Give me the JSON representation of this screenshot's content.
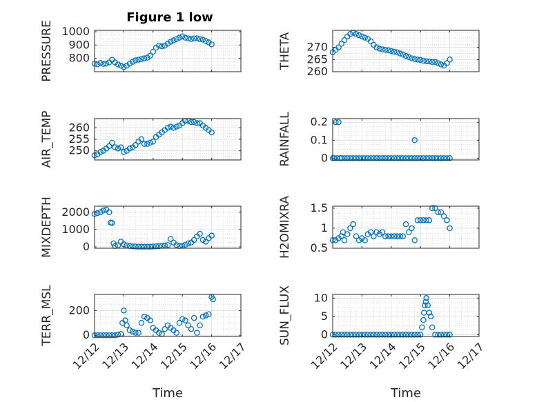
{
  "figure": {
    "title": "Figure 1 low"
  },
  "colors": {
    "marker": "#0072BD",
    "axis": "#262626",
    "grid": "#c8c8c8"
  },
  "chart_data": [
    {
      "type": "scatter",
      "id": "pressure",
      "ylabel": "PRESSURE",
      "xlabel": "",
      "title": "Figure 1 low",
      "xlim": [
        12,
        17
      ],
      "xticks": [
        12,
        13,
        14,
        15,
        16,
        17
      ],
      "xticklabels": [
        "12/12",
        "12/13",
        "12/14",
        "12/15",
        "12/16",
        "12/17"
      ],
      "show_xticklabels": false,
      "ylim": [
        700,
        1010
      ],
      "yticks": [
        800,
        900,
        1000
      ],
      "yticklabels": [
        "800",
        "900",
        "1000"
      ],
      "x": [
        12.0,
        12.1,
        12.2,
        12.3,
        12.4,
        12.5,
        12.6,
        12.7,
        12.8,
        12.9,
        13.0,
        13.1,
        13.2,
        13.3,
        13.4,
        13.5,
        13.6,
        13.7,
        13.8,
        13.9,
        14.0,
        14.1,
        14.2,
        14.3,
        14.4,
        14.5,
        14.6,
        14.7,
        14.8,
        14.9,
        15.0,
        15.1,
        15.2,
        15.3,
        15.4,
        15.5,
        15.6,
        15.7,
        15.8,
        15.9,
        16.0
      ],
      "y": [
        760,
        755,
        765,
        758,
        760,
        770,
        790,
        770,
        755,
        745,
        735,
        745,
        760,
        775,
        785,
        790,
        795,
        800,
        805,
        820,
        850,
        880,
        895,
        890,
        895,
        910,
        925,
        935,
        945,
        955,
        965,
        955,
        950,
        945,
        950,
        950,
        945,
        940,
        930,
        920,
        905
      ]
    },
    {
      "type": "scatter",
      "id": "theta",
      "ylabel": "THETA",
      "xlabel": "",
      "xlim": [
        12,
        17
      ],
      "xticks": [
        12,
        13,
        14,
        15,
        16,
        17
      ],
      "xticklabels": [
        "12/12",
        "12/13",
        "12/14",
        "12/15",
        "12/16",
        "12/17"
      ],
      "show_xticklabels": false,
      "ylim": [
        260,
        277
      ],
      "yticks": [
        260,
        265,
        270
      ],
      "yticklabels": [
        "260",
        "265",
        "270"
      ],
      "x": [
        12.0,
        12.1,
        12.2,
        12.3,
        12.4,
        12.5,
        12.6,
        12.7,
        12.8,
        12.9,
        13.0,
        13.1,
        13.2,
        13.3,
        13.4,
        13.5,
        13.6,
        13.7,
        13.8,
        13.9,
        14.0,
        14.1,
        14.2,
        14.3,
        14.4,
        14.5,
        14.6,
        14.7,
        14.8,
        14.9,
        15.0,
        15.1,
        15.2,
        15.3,
        15.4,
        15.5,
        15.6,
        15.7,
        15.8,
        15.9,
        16.0
      ],
      "y": [
        268,
        269,
        270,
        271.5,
        273,
        274.5,
        275.5,
        276,
        275.5,
        275,
        274.5,
        274,
        273.5,
        272.5,
        271,
        270,
        269.5,
        269.2,
        269,
        268.8,
        268.5,
        268.2,
        268,
        267.5,
        267,
        266.5,
        266,
        265.5,
        265.2,
        265,
        264.8,
        264.5,
        264.3,
        264.2,
        264,
        264,
        263.5,
        263,
        262.5,
        263.5,
        265
      ]
    },
    {
      "type": "scatter",
      "id": "air_temp",
      "ylabel": "AIR_TEMP",
      "xlabel": "",
      "xlim": [
        12,
        17
      ],
      "xticks": [
        12,
        13,
        14,
        15,
        16,
        17
      ],
      "xticklabels": [
        "12/12",
        "12/13",
        "12/14",
        "12/15",
        "12/16",
        "12/17"
      ],
      "show_xticklabels": false,
      "ylim": [
        246,
        264
      ],
      "yticks": [
        250,
        255,
        260
      ],
      "yticklabels": [
        "250",
        "255",
        "260"
      ],
      "x": [
        12.0,
        12.1,
        12.2,
        12.3,
        12.4,
        12.5,
        12.6,
        12.7,
        12.8,
        12.9,
        13.0,
        13.1,
        13.2,
        13.3,
        13.4,
        13.5,
        13.6,
        13.7,
        13.8,
        13.9,
        14.0,
        14.1,
        14.2,
        14.3,
        14.4,
        14.5,
        14.6,
        14.7,
        14.8,
        14.9,
        15.0,
        15.1,
        15.2,
        15.3,
        15.4,
        15.5,
        15.6,
        15.7,
        15.8,
        15.9,
        16.0
      ],
      "y": [
        248,
        248.5,
        249.5,
        250,
        251,
        252,
        253.5,
        251.5,
        251,
        251.5,
        249.5,
        250,
        251,
        251.5,
        252.5,
        254,
        255,
        253,
        253,
        253.5,
        254,
        256,
        257,
        258,
        259,
        260,
        260.5,
        260,
        260.5,
        261,
        262,
        263,
        263,
        262.5,
        262.5,
        262,
        262,
        261,
        260,
        259,
        258
      ]
    },
    {
      "type": "scatter",
      "id": "rainfall",
      "ylabel": "RAINFALL",
      "xlabel": "",
      "xlim": [
        12,
        17
      ],
      "xticks": [
        12,
        13,
        14,
        15,
        16,
        17
      ],
      "xticklabels": [
        "12/12",
        "12/13",
        "12/14",
        "12/15",
        "12/16",
        "12/17"
      ],
      "show_xticklabels": false,
      "ylim": [
        -0.01,
        0.22
      ],
      "yticks": [
        0,
        0.1,
        0.2
      ],
      "yticklabels": [
        "0",
        "0.1",
        "0.2"
      ],
      "x": [
        12.0,
        12.05,
        12.1,
        12.15,
        12.2,
        12.25,
        12.3,
        12.4,
        12.5,
        12.6,
        12.7,
        12.8,
        12.9,
        13.0,
        13.1,
        13.2,
        13.3,
        13.4,
        13.5,
        13.6,
        13.7,
        13.8,
        13.9,
        14.0,
        14.1,
        14.2,
        14.3,
        14.4,
        14.5,
        14.6,
        14.7,
        14.8,
        14.9,
        15.0,
        15.1,
        15.2,
        15.3,
        15.4,
        15.5,
        15.6,
        15.7,
        15.8,
        15.9,
        16.0,
        14.8
      ],
      "y": [
        0,
        0,
        0.2,
        0,
        0.2,
        0,
        0,
        0,
        0,
        0,
        0,
        0,
        0,
        0,
        0,
        0,
        0,
        0,
        0,
        0,
        0,
        0,
        0,
        0,
        0,
        0,
        0,
        0,
        0,
        0,
        0,
        0,
        0,
        0,
        0,
        0,
        0,
        0,
        0,
        0,
        0,
        0,
        0,
        0,
        0.1
      ]
    },
    {
      "type": "scatter",
      "id": "mixdepth",
      "ylabel": "MIXDEPTH",
      "xlabel": "",
      "xlim": [
        12,
        17
      ],
      "xticks": [
        12,
        13,
        14,
        15,
        16,
        17
      ],
      "xticklabels": [
        "12/12",
        "12/13",
        "12/14",
        "12/15",
        "12/16",
        "12/17"
      ],
      "show_xticklabels": false,
      "ylim": [
        -80,
        2350
      ],
      "yticks": [
        0,
        1000,
        2000
      ],
      "yticklabels": [
        "0",
        "1000",
        "2000"
      ],
      "x": [
        12.0,
        12.1,
        12.2,
        12.3,
        12.4,
        12.5,
        12.55,
        12.6,
        12.65,
        12.7,
        12.8,
        12.9,
        13.0,
        13.1,
        13.2,
        13.3,
        13.4,
        13.5,
        13.6,
        13.7,
        13.8,
        13.9,
        14.0,
        14.1,
        14.2,
        14.3,
        14.4,
        14.5,
        14.6,
        14.7,
        14.8,
        14.9,
        15.0,
        15.1,
        15.2,
        15.3,
        15.4,
        15.5,
        15.6,
        15.7,
        15.8,
        15.9,
        16.0
      ],
      "y": [
        1900,
        1950,
        2000,
        2100,
        2150,
        2000,
        1400,
        1380,
        200,
        50,
        80,
        300,
        150,
        80,
        50,
        30,
        20,
        10,
        10,
        10,
        10,
        10,
        20,
        30,
        40,
        60,
        80,
        100,
        450,
        250,
        100,
        50,
        60,
        120,
        200,
        250,
        400,
        600,
        750,
        400,
        300,
        500,
        650
      ]
    },
    {
      "type": "scatter",
      "id": "h2omixra",
      "ylabel": "H2OMIXRA",
      "xlabel": "",
      "xlim": [
        12,
        17
      ],
      "xticks": [
        12,
        13,
        14,
        15,
        16,
        17
      ],
      "xticklabels": [
        "12/12",
        "12/13",
        "12/14",
        "12/15",
        "12/16",
        "12/17"
      ],
      "show_xticklabels": false,
      "ylim": [
        0.5,
        1.55
      ],
      "yticks": [
        0.5,
        1,
        1.5
      ],
      "yticklabels": [
        "0.5",
        "1",
        "1.5"
      ],
      "x": [
        12.0,
        12.1,
        12.2,
        12.3,
        12.35,
        12.4,
        12.5,
        12.6,
        12.7,
        12.8,
        12.9,
        13.0,
        13.1,
        13.2,
        13.3,
        13.4,
        13.5,
        13.6,
        13.7,
        13.8,
        13.9,
        14.0,
        14.1,
        14.2,
        14.3,
        14.4,
        14.5,
        14.6,
        14.7,
        14.8,
        14.9,
        15.0,
        15.1,
        15.2,
        15.3,
        15.4,
        15.5,
        15.6,
        15.7,
        15.8,
        15.9,
        16.0
      ],
      "y": [
        0.7,
        0.7,
        0.75,
        0.8,
        0.9,
        0.7,
        0.85,
        1.0,
        1.1,
        0.8,
        0.7,
        0.75,
        0.7,
        0.85,
        0.9,
        0.8,
        0.9,
        0.85,
        0.9,
        0.8,
        0.8,
        0.8,
        0.8,
        0.8,
        0.8,
        0.8,
        1.1,
        0.9,
        1.0,
        0.7,
        1.2,
        1.2,
        1.2,
        1.2,
        1.2,
        1.5,
        1.5,
        1.4,
        1.4,
        1.3,
        1.2,
        1.0
      ]
    },
    {
      "type": "scatter",
      "id": "terr_msl",
      "ylabel": "TERR_MSL",
      "xlabel": "Time",
      "xlim": [
        12,
        17
      ],
      "xticks": [
        12,
        13,
        14,
        15,
        16,
        17
      ],
      "xticklabels": [
        "12/12",
        "12/13",
        "12/14",
        "12/15",
        "12/16",
        "12/17"
      ],
      "show_xticklabels": true,
      "ylim": [
        -10,
        330
      ],
      "yticks": [
        0,
        200
      ],
      "yticklabels": [
        "0",
        "200"
      ],
      "x": [
        12.0,
        12.1,
        12.2,
        12.3,
        12.4,
        12.5,
        12.6,
        12.7,
        12.8,
        12.9,
        12.95,
        13.0,
        13.05,
        13.1,
        13.2,
        13.3,
        13.4,
        13.5,
        13.6,
        13.7,
        13.8,
        13.9,
        14.0,
        14.1,
        14.2,
        14.3,
        14.4,
        14.5,
        14.6,
        14.7,
        14.8,
        14.9,
        15.0,
        15.1,
        15.2,
        15.3,
        15.4,
        15.5,
        15.6,
        15.7,
        15.8,
        15.9,
        16.0,
        16.05
      ],
      "y": [
        0,
        0,
        0,
        0,
        0,
        0,
        0,
        0,
        5,
        10,
        100,
        200,
        120,
        80,
        40,
        30,
        20,
        20,
        100,
        150,
        140,
        120,
        60,
        40,
        20,
        10,
        50,
        80,
        60,
        40,
        20,
        100,
        130,
        120,
        80,
        50,
        140,
        20,
        80,
        150,
        160,
        170,
        310,
        290
      ]
    },
    {
      "type": "scatter",
      "id": "sun_flux",
      "ylabel": "SUN_FLUX",
      "xlabel": "Time",
      "xlim": [
        12,
        17
      ],
      "xticks": [
        12,
        13,
        14,
        15,
        16,
        17
      ],
      "xticklabels": [
        "12/12",
        "12/13",
        "12/14",
        "12/15",
        "12/16",
        "12/17"
      ],
      "show_xticklabels": true,
      "ylim": [
        -0.5,
        11
      ],
      "yticks": [
        0,
        5,
        10
      ],
      "yticklabels": [
        "0",
        "5",
        "10"
      ],
      "x": [
        12.0,
        12.1,
        12.2,
        12.3,
        12.4,
        12.5,
        12.6,
        12.7,
        12.8,
        12.9,
        13.0,
        13.1,
        13.2,
        13.3,
        13.4,
        13.5,
        13.6,
        13.7,
        13.8,
        13.9,
        14.0,
        14.1,
        14.2,
        14.3,
        14.4,
        14.5,
        14.6,
        14.7,
        14.8,
        14.9,
        15.0,
        15.05,
        15.1,
        15.12,
        15.15,
        15.18,
        15.2,
        15.25,
        15.3,
        15.35,
        15.4,
        15.5,
        15.6,
        15.7,
        15.8,
        15.9,
        16.0
      ],
      "y": [
        0,
        0,
        0,
        0,
        0,
        0,
        0,
        0,
        0,
        0,
        0,
        0,
        0,
        0,
        0,
        0,
        0,
        0,
        0,
        0,
        0,
        0,
        0,
        0,
        0,
        0,
        0,
        0,
        0,
        0,
        0,
        2,
        4,
        6,
        8,
        9,
        10,
        8,
        6,
        5,
        2,
        0,
        0,
        0,
        0,
        0,
        0
      ]
    }
  ]
}
